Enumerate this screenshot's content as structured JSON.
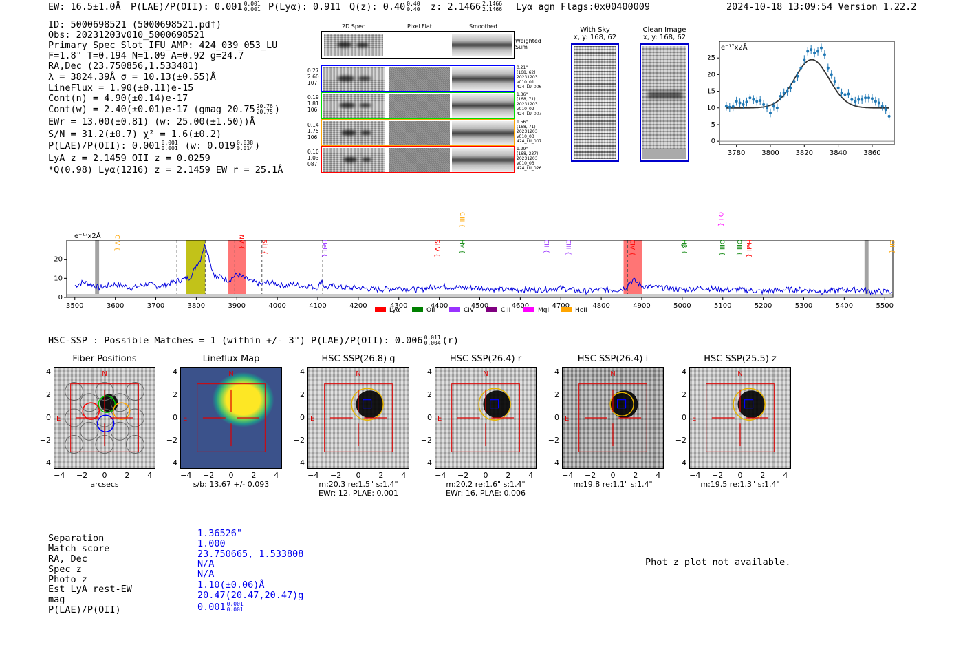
{
  "header": {
    "ew": "EW: 16.5±1.0Å",
    "plae": "P(LAE)/P(OII): 0.001",
    "plae_hi": "0.001",
    "plae_lo": "0.001",
    "plya": "P(Lyα): 0.911",
    "qz": "Q(z): 0.40",
    "qz_hi": "0.40",
    "qz_lo": "0.40",
    "z": "z: 2.1466",
    "z_hi": "2.1466",
    "z_lo": "2.1466",
    "line": "Lyα  agn  Flags:0x00400009",
    "datetime": "2024-10-18 13:09:54  Version 1.22.2"
  },
  "info": {
    "l1": "ID: 5000698521 (5000698521.pdf)",
    "l2": "Obs: 20231203v010_5000698521",
    "l3": "Primary Spec_Slot_IFU_AMP: 424_039_053_LU",
    "l4": "F=1.8\"  T=0.194  N=1.09  A=0.92  g=24.7",
    "l5": "RA,Dec (23.750856,1.533481)",
    "l6": "λ = 3824.39Å  σ = 10.13(±0.55)Å",
    "l7": "LineFlux = 1.90(±0.11)e-15",
    "l8": "Cont(n) = 4.90(±0.14)e-17",
    "l9": "Cont(w) = 2.40(±0.01)e-17 (gmag 20.75",
    "l9_hi": "20.76",
    "l9_lo": "20.75",
    "l9_end": ")",
    "l10": "EWr = 13.00(±0.81) (w: 25.00(±1.50))Å",
    "l11": "S/N = 31.2(±0.7)  χ² = 1.6(±0.2)",
    "l12": "P(LAE)/P(OII): 0.001",
    "l12_hi": "0.001",
    "l12_lo": "0.001",
    "l12_mid": "(w: 0.019",
    "l12_hi2": "0.038",
    "l12_lo2": "0.014",
    "l12_end": ")",
    "l13": "LyA z = 2.1459   OII z = 0.0259",
    "l14": "*Q(0.98) Lyα(1216) z = 2.1459   EW r = 25.1Å"
  },
  "spec2d": {
    "col_labels": [
      "2D Spec",
      "Pixel Flat",
      "Smoothed"
    ],
    "weighted": "Weighted\nSum",
    "rows": [
      {
        "color": "#0000ff",
        "left": "0.27\n2.60\n107",
        "right": "0.21\"\n(168, 62)\n20231203\nv010_01\n424_LU_006"
      },
      {
        "color": "#00dd00",
        "left": "0.19\n1.81\n106",
        "right": "1.36\"\n(168, 71)\n20231203\nv010_02\n424_LU_007"
      },
      {
        "color": "#ffa500",
        "left": "0.14\n1.75\n106",
        "right": "1.56\"\n(168, 71)\n20231203\nv010_03\n424_LU_007"
      },
      {
        "color": "#ff0000",
        "left": "0.10\n1.03\n087",
        "right": "1.29\"\n(168, 237)\n20231203\nv010_03\n424_LU_026"
      }
    ]
  },
  "cutouts": {
    "sky_title": "With Sky",
    "sky_sub": "x, y: 168, 62",
    "clean_title": "Clean Image",
    "clean_sub": "x, y: 168, 62"
  },
  "fit_chart": {
    "type": "scatter",
    "ylabel": "e⁻¹⁷x2Å",
    "xlim": [
      3770,
      3873
    ],
    "ylim": [
      -1,
      30
    ],
    "xticks": [
      3780,
      3800,
      3820,
      3840,
      3860
    ],
    "yticks": [
      0,
      5,
      10,
      15,
      20,
      25
    ],
    "x": [
      3774,
      3776,
      3778,
      3780,
      3782,
      3784,
      3786,
      3788,
      3790,
      3792,
      3794,
      3796,
      3798,
      3800,
      3802,
      3804,
      3806,
      3808,
      3810,
      3812,
      3814,
      3816,
      3818,
      3820,
      3822,
      3824,
      3826,
      3828,
      3830,
      3832,
      3834,
      3836,
      3838,
      3840,
      3842,
      3844,
      3846,
      3848,
      3850,
      3852,
      3854,
      3856,
      3858,
      3860,
      3862,
      3864,
      3866,
      3868,
      3870
    ],
    "y": [
      10.5,
      10.2,
      10.4,
      12.0,
      11.5,
      11.0,
      11.8,
      13.0,
      12.5,
      12.0,
      12.2,
      11.0,
      10.0,
      8.5,
      10.5,
      10.0,
      13.5,
      14.5,
      15.0,
      16.0,
      18.0,
      19.5,
      22.0,
      24.5,
      27.0,
      27.5,
      26.5,
      27.0,
      28.0,
      26.0,
      22.0,
      20.0,
      18.0,
      16.0,
      14.5,
      14.0,
      14.2,
      12.5,
      12.0,
      12.5,
      12.5,
      13.0,
      13.0,
      12.8,
      12.0,
      11.5,
      10.5,
      9.5,
      7.5
    ],
    "fit_peak": 24.5,
    "fit_center": 3824.39,
    "fit_sigma": 10.13,
    "fit_continuum": 10.0
  },
  "spectrum": {
    "type": "line",
    "ylabel": "e⁻¹⁷x2Å",
    "xlim": [
      3480,
      5520
    ],
    "ylim": [
      0,
      30
    ],
    "xticks": [
      3500,
      3600,
      3700,
      3800,
      3900,
      4000,
      4100,
      4200,
      4300,
      4400,
      4500,
      4600,
      4700,
      4800,
      4900,
      5000,
      5100,
      5200,
      5300,
      5400,
      5500
    ],
    "yticks": [
      0,
      10,
      20
    ],
    "lines": [
      {
        "name": "CIV",
        "x": 3600,
        "color": "#ffa500",
        "row": 2
      },
      {
        "name": "NV",
        "x": 3907,
        "color": "#ff0000",
        "row": 2
      },
      {
        "name": "SiII",
        "x": 3963,
        "color": "#ff0000",
        "row": 3
      },
      {
        "name": "HeII",
        "x": 4112,
        "color": "#9933ff",
        "row": 3
      },
      {
        "name": "SiIV",
        "x": 4390,
        "color": "#ff0000",
        "row": 3
      },
      {
        "name": "CIII",
        "x": 4452,
        "color": "#ffa500",
        "row": 0
      },
      {
        "name": "Hγ",
        "x": 4452,
        "color": "#008000",
        "row": 3
      },
      {
        "name": "CII",
        "x": 4660,
        "color": "#9933ff",
        "row": 3
      },
      {
        "name": "CIII",
        "x": 4714,
        "color": "#9933ff",
        "row": 3
      },
      {
        "name": "CIV",
        "x": 4872,
        "color": "#ff0000",
        "row": 3
      },
      {
        "name": "Hβ",
        "x": 5000,
        "color": "#008000",
        "row": 3
      },
      {
        "name": "OIII",
        "x": 5094,
        "color": "#008000",
        "row": 3
      },
      {
        "name": "OIII",
        "x": 5136,
        "color": "#008000",
        "row": 3
      },
      {
        "name": "HeII",
        "x": 5160,
        "color": "#ff0000",
        "row": 3
      },
      {
        "name": "OII",
        "x": 5090,
        "color": "#ff00ff",
        "row": 0
      },
      {
        "name": "CII",
        "x": 5518,
        "color": "#ffa500",
        "row": 3
      }
    ],
    "shaded": [
      {
        "x0": 3550,
        "x1": 3560,
        "color": "#999999"
      },
      {
        "x0": 3775,
        "x1": 3822,
        "color": "#bbbb00"
      },
      {
        "x0": 3878,
        "x1": 3922,
        "color": "#ff6666"
      },
      {
        "x0": 4855,
        "x1": 4900,
        "color": "#ff6666"
      },
      {
        "x0": 5450,
        "x1": 5460,
        "color": "#999999"
      }
    ],
    "vlines": [
      3752,
      3822,
      3895,
      3962,
      4112,
      4865
    ],
    "legend": [
      {
        "label": "Lyα",
        "color": "#ff0000"
      },
      {
        "label": "OII",
        "color": "#008000"
      },
      {
        "label": "CIV",
        "color": "#9933ff"
      },
      {
        "label": "CIII",
        "color": "#800080"
      },
      {
        "label": "MgII",
        "color": "#ff00ff"
      },
      {
        "label": "HeII",
        "color": "#ffa500"
      }
    ],
    "flux_samples": {
      "x": [
        3500,
        3520,
        3540,
        3560,
        3580,
        3600,
        3620,
        3640,
        3660,
        3680,
        3700,
        3720,
        3740,
        3760,
        3780,
        3790,
        3800,
        3810,
        3815,
        3820,
        3825,
        3830,
        3840,
        3850,
        3860,
        3880,
        3900,
        3920,
        3940,
        3960,
        3980,
        4000,
        4020,
        4040,
        4060,
        4080,
        4100,
        4110,
        4115,
        4120,
        4140,
        4160,
        4200,
        4250,
        4300,
        4350,
        4400,
        4450,
        4500,
        4550,
        4600,
        4650,
        4700,
        4750,
        4800,
        4840,
        4860,
        4870,
        4880,
        4900,
        4950,
        5000,
        5050,
        5100,
        5150,
        5200,
        5250,
        5300,
        5350,
        5400,
        5450,
        5460,
        5480,
        5520
      ],
      "y": [
        6,
        8,
        7,
        5,
        6,
        7,
        6,
        5,
        6,
        7,
        6,
        6,
        8,
        9,
        10,
        12,
        17,
        20,
        24,
        27,
        26,
        22,
        14,
        10,
        11,
        9,
        12,
        10,
        8,
        7,
        8,
        7,
        6,
        7,
        6,
        6,
        5,
        9,
        6,
        5,
        6,
        5,
        5,
        4,
        5,
        4,
        6,
        5,
        5,
        4,
        4,
        4,
        5,
        3,
        4,
        4,
        5,
        8,
        9,
        6,
        5,
        4,
        5,
        4,
        4,
        3,
        4,
        4,
        3,
        4,
        4,
        3,
        3,
        3
      ]
    }
  },
  "hsc": {
    "title": "HSC-SSP : Possible Matches = 1 (within +/- 3\")  P(LAE)/P(OII): 0.006",
    "frac_hi": "0.011",
    "frac_lo": "0.004",
    "suffix": "(r)",
    "axis_ticks": [
      "−4",
      "−2",
      "0",
      "2",
      "4"
    ],
    "panels": [
      {
        "title": "Fiber Positions",
        "cap1": "arcsecs",
        "cap2": ""
      },
      {
        "title": "Lineflux Map",
        "cap1": "s/b: 13.67 +/- 0.093",
        "cap2": ""
      },
      {
        "title": "HSC SSP(26.8) g",
        "cap1": "m:20.3  re:1.5\"  s:1.4\"",
        "cap2": "EWr: 12, PLAE: 0.001"
      },
      {
        "title": "HSC SSP(26.4) r",
        "cap1": "m:20.2  re:1.6\"  s:1.4\"",
        "cap2": "EWr: 16, PLAE: 0.006"
      },
      {
        "title": "HSC SSP(26.4) i",
        "cap1": "m:19.8  re:1.1\"  s:1.4\"",
        "cap2": ""
      },
      {
        "title": "HSC SSP(25.5) z",
        "cap1": "m:19.5  re:1.3\"  s:1.4\"",
        "cap2": ""
      }
    ],
    "n_label": "N",
    "e_label": "E"
  },
  "match": {
    "labels": [
      "Separation",
      "Match score",
      "RA, Dec",
      "Spec z",
      "Photo z",
      "Est LyA rest-EW",
      "mag",
      "P(LAE)/P(OII)"
    ],
    "values": [
      "1.36526\"",
      "1.000",
      "23.750665, 1.533808",
      "N/A",
      "N/A",
      "1.10(±0.06)Å",
      "20.47(20.47,20.47)g",
      "0.001"
    ],
    "last_hi": "0.001",
    "last_lo": "0.001",
    "photz_note": "Phot z plot not available."
  }
}
